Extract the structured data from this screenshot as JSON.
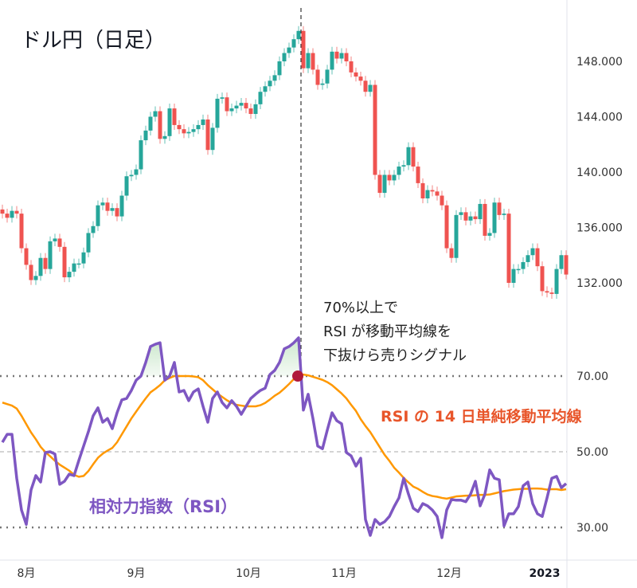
{
  "chart_data": [
    {
      "type": "candlestick",
      "title": "ドル円（日足）",
      "colors": {
        "up": "#26a69a",
        "down": "#ef5350"
      },
      "y_ticks": [
        "148.000",
        "144.000",
        "140.000",
        "136.000",
        "132.000"
      ],
      "y_tick_values": [
        148,
        144,
        140,
        136,
        132
      ],
      "ylim": [
        130.8,
        152.4
      ],
      "first_open": 137.3,
      "close": [
        137.0,
        136.7,
        137.2,
        137.0,
        134.5,
        133.3,
        132.2,
        132.5,
        133.8,
        133.0,
        135.0,
        135.2,
        134.6,
        132.4,
        132.8,
        133.4,
        133.4,
        134.2,
        135.6,
        136.1,
        137.6,
        137.8,
        137.2,
        137.4,
        136.8,
        138.3,
        139.7,
        139.8,
        140.2,
        142.3,
        143.0,
        144.0,
        144.4,
        142.4,
        142.6,
        144.6,
        143.4,
        143.1,
        142.8,
        142.9,
        143.1,
        143.4,
        143.8,
        141.6,
        143.2,
        145.3,
        145.4,
        144.4,
        144.6,
        144.8,
        145.0,
        144.6,
        144.2,
        144.9,
        145.8,
        146.2,
        146.6,
        147.0,
        148.0,
        148.6,
        149.0,
        149.6,
        150.2,
        147.5,
        148.6,
        147.4,
        146.3,
        146.4,
        147.4,
        148.7,
        148.2,
        148.6,
        148.0,
        147.2,
        146.9,
        146.6,
        145.8,
        146.3,
        139.8,
        138.5,
        139.8,
        139.4,
        139.8,
        140.4,
        140.5,
        141.8,
        140.4,
        139.2,
        138.1,
        138.7,
        138.6,
        138.3,
        137.6,
        134.5,
        133.8,
        136.9,
        137.1,
        136.5,
        136.8,
        136.6,
        137.7,
        135.4,
        135.6,
        137.8,
        136.9,
        137.0,
        132.0,
        133.0,
        133.0,
        133.5,
        134.0,
        134.5,
        133.2,
        131.4,
        131.3,
        131.2,
        133.0,
        134.0,
        132.6
      ]
    },
    {
      "type": "line",
      "series": [
        {
          "name": "相対力指数（RSI）",
          "color": "#7e57c2",
          "values": [
            52.5,
            54.6,
            54.6,
            43,
            34.6,
            30.8,
            39.9,
            43.7,
            42,
            49.8,
            50,
            49.4,
            41.4,
            42.2,
            44.1,
            43.7,
            47.7,
            51.5,
            55.3,
            59.5,
            61.6,
            57.8,
            58.8,
            56.1,
            60.3,
            63.7,
            64.1,
            66.2,
            68.9,
            70,
            73.6,
            77.8,
            78.4,
            78.8,
            68.9,
            70,
            73.6,
            65.8,
            66.2,
            63.5,
            65.8,
            66.6,
            62,
            57.8,
            64.1,
            65.8,
            63,
            61.6,
            63.5,
            62,
            59.9,
            62,
            64.1,
            65.2,
            66.2,
            66.8,
            70.4,
            71.5,
            73.6,
            77.2,
            77.8,
            78.8,
            80.1,
            61,
            65.2,
            58.8,
            51.5,
            50.8,
            55.7,
            60.3,
            58.2,
            57.4,
            49.8,
            48.9,
            46.2,
            48.3,
            32.1,
            27.9,
            32.1,
            30.8,
            31.5,
            32.9,
            35.5,
            37.8,
            43,
            38.8,
            35.1,
            34.2,
            36.3,
            35.7,
            34.6,
            32.9,
            27.3,
            34.6,
            37.4,
            37.2,
            37.2,
            36.8,
            38.8,
            42.2,
            35.7,
            38.8,
            45.2,
            43,
            42.6,
            30.4,
            33.6,
            33.6,
            35.5,
            41,
            42,
            36.3,
            33.6,
            32.9,
            37.8,
            43,
            43.5,
            40.5,
            41.6
          ]
        },
        {
          "name": "RSI の 14 日単純移動平均線",
          "color": "#ff9800",
          "values": [
            63,
            62.6,
            62.2,
            61.4,
            59.5,
            57.3,
            55.1,
            53.3,
            51.3,
            49.9,
            48.8,
            47.6,
            46.6,
            45.8,
            45,
            43.9,
            43.4,
            43.6,
            44.9,
            46.7,
            48.4,
            49.5,
            50.3,
            51,
            52.5,
            54.6,
            56.7,
            58.8,
            60.6,
            62.4,
            64.1,
            65.7,
            66.6,
            67.6,
            68.9,
            69.5,
            70,
            70,
            70,
            70,
            69.9,
            69.7,
            68.9,
            67.6,
            66.5,
            65.4,
            64.5,
            63.6,
            62.9,
            62.4,
            62.2,
            62,
            62,
            62,
            62.3,
            62.9,
            63.8,
            64.8,
            65.6,
            66.7,
            67.9,
            69.2,
            69.9,
            70.4,
            70.2,
            69.8,
            69.4,
            69,
            68.4,
            67.6,
            66.5,
            65.4,
            64.1,
            62.4,
            60.8,
            58.6,
            56.8,
            55.2,
            53.2,
            51.2,
            49.2,
            47.6,
            45.8,
            44.5,
            43.1,
            41.9,
            40.8,
            40.2,
            39.4,
            38.7,
            38.3,
            38.1,
            37.8,
            37.6,
            37.9,
            38.2,
            38.3,
            38.4,
            38.4,
            38.5,
            38.6,
            38.6,
            38.7,
            39,
            39.3,
            39.6,
            39.8,
            40,
            40.1,
            40.2,
            40.2,
            40.3,
            40.3,
            40.2,
            40,
            40.1,
            40.1,
            39.9,
            40.1
          ]
        }
      ],
      "y_ticks": [
        "70.00",
        "50.00",
        "30.00"
      ],
      "y_tick_values": [
        70,
        50,
        30
      ],
      "overbought_fill_color": "#c8e6c9",
      "signal_point": {
        "index": 62.5,
        "value": 70,
        "color": "#b0193a"
      },
      "annotation": [
        "70%以上で",
        "RSI が移動平均線を",
        "下抜けら売りシグナル"
      ]
    }
  ],
  "x_axis": {
    "labels": [
      "8月",
      "9月",
      "10月",
      "11月",
      "12月",
      "2023"
    ],
    "label_index": [
      5,
      28,
      51.5,
      71.5,
      93.5,
      113.5
    ]
  }
}
